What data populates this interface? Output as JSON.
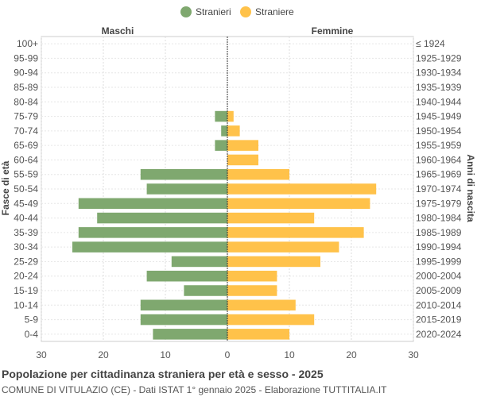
{
  "chart_data": {
    "type": "bar",
    "orientation": "horizontal-butterfly",
    "legend": {
      "placement": "top-center",
      "items": [
        {
          "label": "Stranieri",
          "color": "#7fa86f"
        },
        {
          "label": "Straniere",
          "color": "#ffc24a"
        }
      ]
    },
    "left_header": "Maschi",
    "right_header": "Femmine",
    "ylabel_left": "Fasce di età",
    "ylabel_right": "Anni di nascita",
    "xlim": [
      -30,
      30
    ],
    "xticks": [
      -30,
      -20,
      -10,
      0,
      10,
      20,
      30
    ],
    "xtick_labels": [
      "30",
      "20",
      "10",
      "0",
      "10",
      "20",
      "30"
    ],
    "grid": true,
    "categories": [
      "100+",
      "95-99",
      "90-94",
      "85-89",
      "80-84",
      "75-79",
      "70-74",
      "65-69",
      "60-64",
      "55-59",
      "50-54",
      "45-49",
      "40-44",
      "35-39",
      "30-34",
      "25-29",
      "20-24",
      "15-19",
      "10-14",
      "5-9",
      "0-4"
    ],
    "birth_years": [
      "≤ 1924",
      "1925-1929",
      "1930-1934",
      "1935-1939",
      "1940-1944",
      "1945-1949",
      "1950-1954",
      "1955-1959",
      "1960-1964",
      "1965-1969",
      "1970-1974",
      "1975-1979",
      "1980-1984",
      "1985-1989",
      "1990-1994",
      "1995-1999",
      "2000-2004",
      "2005-2009",
      "2010-2014",
      "2015-2019",
      "2020-2024"
    ],
    "series": [
      {
        "name": "Stranieri",
        "color": "#7fa86f",
        "values": [
          0,
          0,
          0,
          0,
          0,
          2,
          1,
          2,
          0,
          14,
          13,
          24,
          21,
          24,
          25,
          9,
          13,
          7,
          14,
          14,
          12
        ]
      },
      {
        "name": "Straniere",
        "color": "#ffc24a",
        "values": [
          0,
          0,
          0,
          0,
          0,
          1,
          2,
          5,
          5,
          10,
          24,
          23,
          14,
          22,
          18,
          15,
          8,
          8,
          11,
          14,
          10
        ]
      }
    ]
  },
  "caption": {
    "title": "Popolazione per cittadinanza straniera per età e sesso - 2025",
    "subtitle": "COMUNE DI VITULAZIO (CE) - Dati ISTAT 1° gennaio 2025 - Elaborazione TUTTITALIA.IT"
  }
}
